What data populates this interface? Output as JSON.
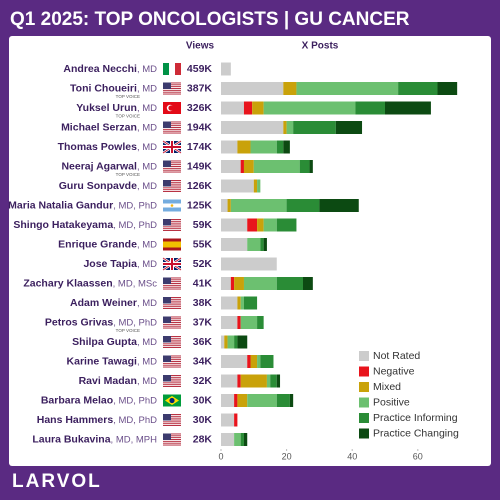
{
  "brand": "LARVOL",
  "chart_data": {
    "type": "bar",
    "horizontal": true,
    "stacked": true,
    "title": "Q1 2025: TOP ONCOLOGISTS | GU CANCER",
    "views_label": "Views",
    "xlabel": "X Posts",
    "categories": [
      "Andrea Necchi",
      "Toni Choueiri",
      "Yuksel Urun",
      "Michael Serzan",
      "Thomas Powles",
      "Neeraj Agarwal",
      "Guru Sonpavde",
      "Maria Natalia Gandur",
      "Shingo Hatakeyama",
      "Enrique Grande",
      "Jose Tapia",
      "Zachary Klaassen",
      "Adam Weiner",
      "Petros Grivas",
      "Shilpa Gupta",
      "Karine Tawagi",
      "Ravi Madan",
      "Barbara Melao",
      "Hans Hammers",
      "Laura Bukavina"
    ],
    "credentials": [
      ", MD",
      ", MD",
      ", MD",
      ", MD",
      ", MD",
      ", MD",
      ", MD",
      ", MD, PhD",
      ", MD, PhD",
      ", MD",
      ", MD",
      ", MD, MSc",
      ", MD",
      ", MD, PhD",
      ", MD",
      ", MD",
      ", MD",
      ", MD, PhD",
      ", MD, PhD",
      ", MD, MPH"
    ],
    "badges": [
      null,
      "TOP VOICE",
      "TOP VOICE",
      null,
      null,
      "TOP VOICE",
      null,
      null,
      null,
      null,
      null,
      null,
      null,
      "TOP VOICE",
      null,
      null,
      null,
      null,
      null,
      null
    ],
    "flags": [
      "it",
      "us",
      "tr",
      "us",
      "gb",
      "us",
      "us",
      "ar",
      "us",
      "es",
      "gb",
      "us",
      "us",
      "us",
      "us",
      "us",
      "us",
      "br",
      "us",
      "us"
    ],
    "views": [
      "459K",
      "387K",
      "326K",
      "194K",
      "174K",
      "149K",
      "126K",
      "125K",
      "59K",
      "55K",
      "52K",
      "41K",
      "38K",
      "37K",
      "36K",
      "34K",
      "32K",
      "30K",
      "30K",
      "28K"
    ],
    "series": [
      {
        "name": "Not Rated",
        "color": "#cccccc",
        "values": [
          3,
          19,
          7,
          19,
          5,
          6,
          10,
          2,
          8,
          8,
          17,
          3,
          5,
          5,
          1,
          8,
          5,
          4,
          4,
          4
        ]
      },
      {
        "name": "Negative",
        "color": "#e8141c",
        "values": [
          0,
          0,
          2.5,
          0,
          0,
          1,
          0,
          0,
          3,
          0,
          0,
          1,
          0,
          1,
          0,
          1,
          1,
          1,
          1,
          0
        ]
      },
      {
        "name": "Mixed",
        "color": "#c9a20a",
        "values": [
          0,
          4,
          3.5,
          1,
          4,
          3,
          1,
          1,
          2,
          0,
          0,
          3,
          1,
          0,
          1,
          2,
          8,
          3,
          0,
          0
        ]
      },
      {
        "name": "Positive",
        "color": "#6cc070",
        "values": [
          0,
          31,
          28,
          2,
          8,
          14,
          1,
          17,
          4,
          4,
          0,
          10,
          1,
          5,
          2,
          1,
          1,
          9,
          0,
          2
        ]
      },
      {
        "name": "Practice Informing",
        "color": "#2a8c36",
        "values": [
          0,
          12,
          9,
          13,
          2,
          3,
          0,
          10,
          6,
          1,
          0,
          8,
          4,
          2,
          1,
          4,
          2,
          4,
          0,
          1
        ]
      },
      {
        "name": "Practice Changing",
        "color": "#0c4a12",
        "values": [
          0,
          6,
          14,
          8,
          2,
          1,
          0,
          12,
          0,
          1,
          0,
          3,
          0,
          0,
          3,
          0,
          1,
          1,
          0,
          1
        ]
      }
    ],
    "xlim": [
      0,
      75
    ],
    "xticks": [
      0,
      20,
      40,
      60
    ],
    "legend": "lower right"
  }
}
